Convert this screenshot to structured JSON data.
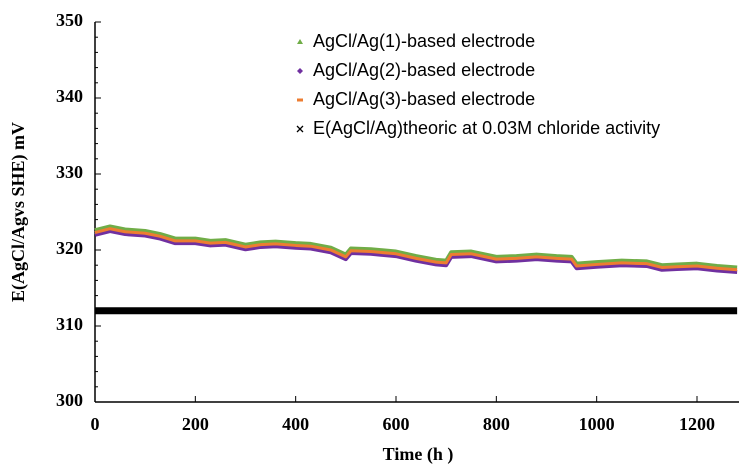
{
  "chart_data": {
    "type": "line",
    "xlabel": "Time (h )",
    "ylabel": "E(AgCl/Agvs SHE) mV",
    "x": [
      0,
      30,
      60,
      100,
      130,
      160,
      200,
      230,
      260,
      300,
      330,
      360,
      400,
      430,
      470,
      500,
      510,
      550,
      600,
      640,
      680,
      700,
      710,
      750,
      800,
      840,
      880,
      920,
      950,
      960,
      1000,
      1050,
      1100,
      1130,
      1160,
      1200,
      1240,
      1280
    ],
    "series": [
      {
        "name": "AgCl/Ag(1)-based electrode",
        "color": "#70ad47",
        "marker": "triangle",
        "values": [
          322.6,
          323.1,
          322.7,
          322.5,
          322.1,
          321.5,
          321.5,
          321.2,
          321.3,
          320.7,
          321.0,
          321.1,
          320.9,
          320.8,
          320.3,
          319.4,
          320.2,
          320.1,
          319.8,
          319.2,
          318.7,
          318.6,
          319.7,
          319.8,
          319.1,
          319.2,
          319.4,
          319.2,
          319.1,
          318.2,
          318.4,
          318.6,
          318.5,
          318.0,
          318.1,
          318.2,
          317.9,
          317.7
        ]
      },
      {
        "name": "AgCl/Ag(2)-based electrode",
        "color": "#7030a0",
        "marker": "diamond",
        "values": [
          322.0,
          322.5,
          322.1,
          321.9,
          321.5,
          320.9,
          320.9,
          320.6,
          320.7,
          320.1,
          320.4,
          320.5,
          320.3,
          320.2,
          319.7,
          318.8,
          319.6,
          319.5,
          319.2,
          318.6,
          318.1,
          318.0,
          319.1,
          319.2,
          318.5,
          318.6,
          318.8,
          318.6,
          318.5,
          317.6,
          317.8,
          318.0,
          317.9,
          317.4,
          317.5,
          317.6,
          317.3,
          317.1
        ]
      },
      {
        "name": "AgCl/Ag(3)-based electrode",
        "color": "#ed7d31",
        "marker": "dash",
        "values": [
          322.3,
          322.8,
          322.4,
          322.2,
          321.8,
          321.2,
          321.2,
          320.9,
          321.0,
          320.4,
          320.7,
          320.8,
          320.6,
          320.5,
          320.0,
          319.1,
          319.9,
          319.8,
          319.5,
          318.9,
          318.4,
          318.3,
          319.4,
          319.5,
          318.8,
          318.9,
          319.1,
          318.9,
          318.8,
          317.9,
          318.1,
          318.3,
          318.2,
          317.7,
          317.8,
          317.9,
          317.6,
          317.4
        ]
      },
      {
        "name": "E(AgCl/Ag)theoric at 0.03M chloride activity",
        "color": "#000000",
        "marker": "cross",
        "values": [
          312,
          312,
          312,
          312,
          312,
          312,
          312,
          312,
          312,
          312,
          312,
          312,
          312,
          312,
          312,
          312,
          312,
          312,
          312,
          312,
          312,
          312,
          312,
          312,
          312,
          312,
          312,
          312,
          312,
          312,
          312,
          312,
          312,
          312,
          312,
          312,
          312,
          312
        ]
      }
    ],
    "xlim": [
      0,
      1284
    ],
    "xticks": [
      0,
      200,
      400,
      600,
      800,
      1000,
      1200
    ],
    "ylim": [
      300,
      350
    ],
    "yticks": [
      300,
      310,
      320,
      330,
      340,
      350
    ]
  }
}
